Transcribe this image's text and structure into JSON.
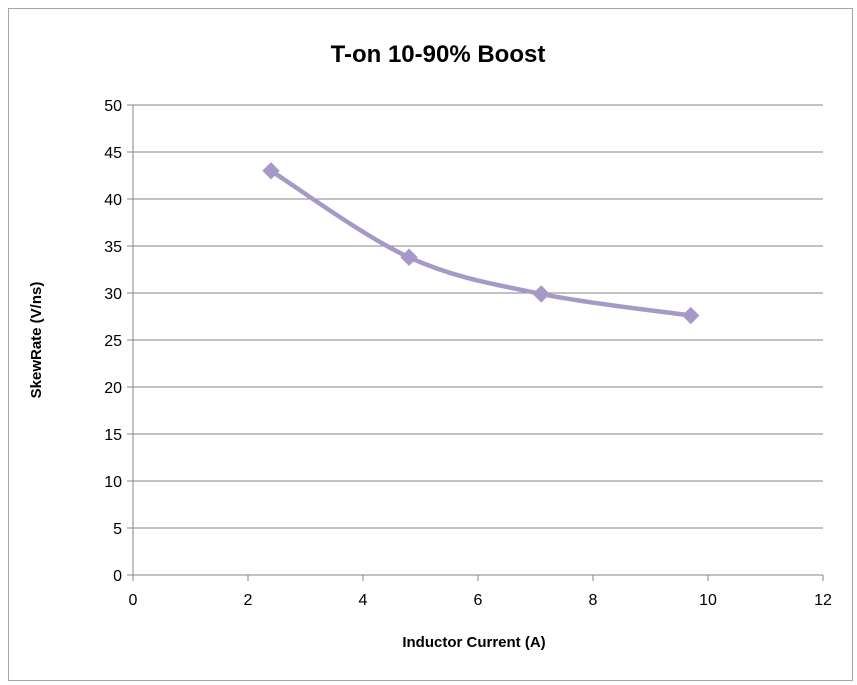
{
  "chart_data": {
    "type": "line",
    "title": "T-on 10-90% Boost",
    "xlabel": "Inductor Current (A)",
    "ylabel": "SkewRate (V/ns)",
    "xlim": [
      0,
      12
    ],
    "ylim": [
      0,
      50
    ],
    "xticks": [
      0,
      2,
      4,
      6,
      8,
      10,
      12
    ],
    "yticks": [
      0,
      5,
      10,
      15,
      20,
      25,
      30,
      35,
      40,
      45,
      50
    ],
    "grid": "horizontal",
    "legend": "none",
    "smooth": true,
    "marker": "diamond",
    "series": [
      {
        "color": "#a699c8",
        "points": [
          {
            "x": 2.4,
            "y": 43.0
          },
          {
            "x": 4.8,
            "y": 33.8
          },
          {
            "x": 7.1,
            "y": 29.9
          },
          {
            "x": 9.7,
            "y": 27.6
          }
        ]
      }
    ],
    "colors": {
      "grid": "#868686",
      "axis": "#868686",
      "border": "#a6a6a6"
    }
  }
}
